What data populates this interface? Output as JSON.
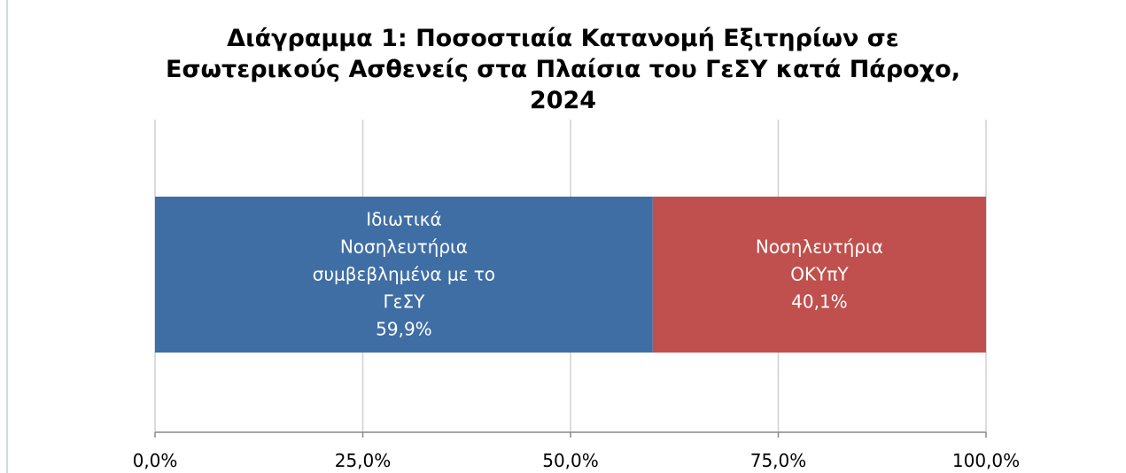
{
  "chart_data": {
    "type": "stacked_barh",
    "title": "Διάγραμμα 1: Ποσοστιαία Κατανομή Εξιτηρίων σε Εσωτερικούς Ασθενείς στα Πλαίσια του ΓεΣΥ κατά Πάροχο, 2024",
    "series": [
      {
        "name": "Ιδιωτικά Νοσηλευτήρια συμβεβλημένα με το ΓεΣΥ",
        "color": "#3f6ea5",
        "values": [
          59.9
        ],
        "value_labels": [
          "59,9%"
        ]
      },
      {
        "name": "Νοσηλευτήρια ΟΚΥπΥ",
        "color": "#c0504d",
        "values": [
          40.1
        ],
        "value_labels": [
          "40,1%"
        ]
      }
    ],
    "xlim": [
      0,
      100
    ],
    "xticks": [
      {
        "value": 0,
        "label": "0,0%"
      },
      {
        "value": 25,
        "label": "25,0%"
      },
      {
        "value": 50,
        "label": "50,0%"
      },
      {
        "value": 75,
        "label": "75,0%"
      },
      {
        "value": 100,
        "label": "100,0%"
      }
    ],
    "grid": true
  }
}
